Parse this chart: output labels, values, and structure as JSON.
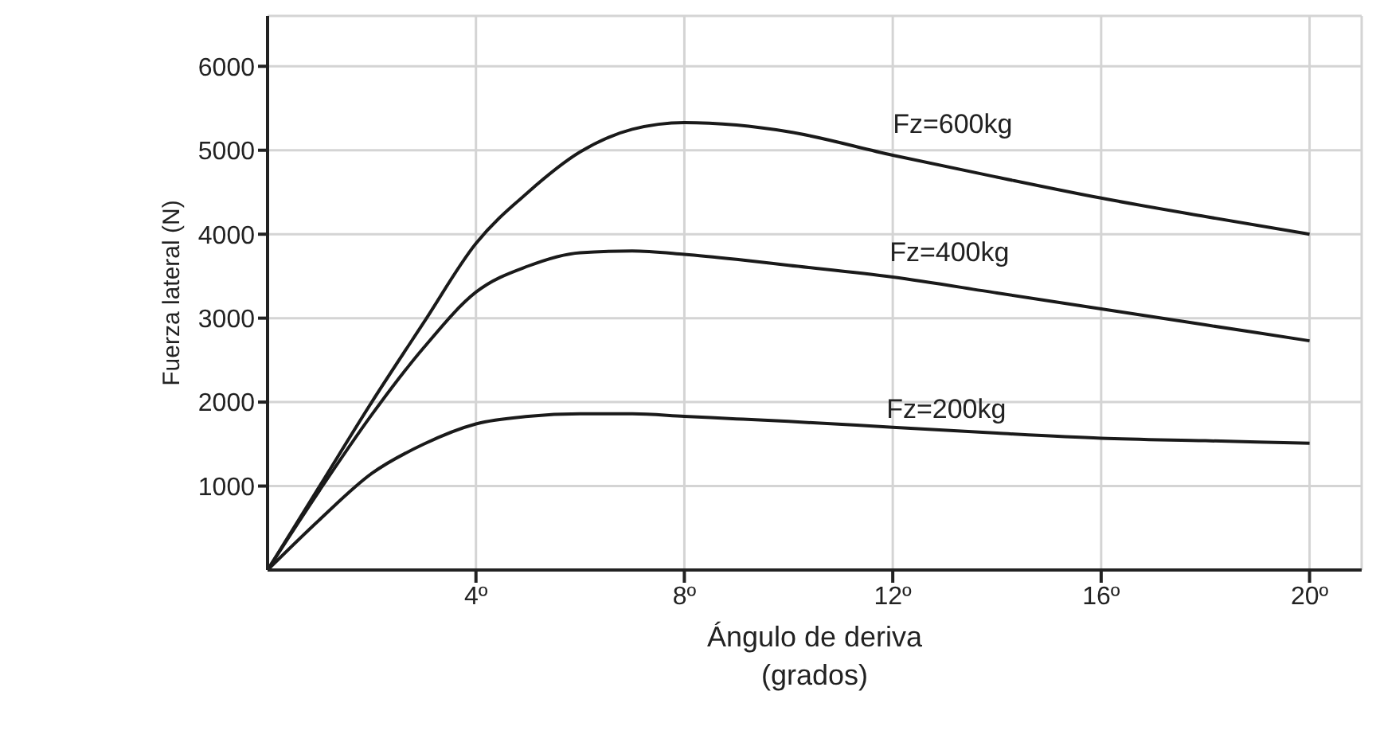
{
  "chart_data": {
    "type": "line",
    "xlabel": "Ángulo de deriva\n(grados)",
    "ylabel": "Fuerza lateral (N)",
    "x": [
      0,
      1,
      2,
      3,
      4,
      5,
      6,
      7,
      8,
      9,
      10,
      12,
      14,
      16,
      18,
      20
    ],
    "series": [
      {
        "name": "Fz=600kg",
        "color": "#1a1a1a",
        "values": [
          0,
          1000,
          2000,
          2950,
          3890,
          4500,
          4980,
          5250,
          5330,
          5300,
          5220,
          4940,
          4680,
          4430,
          4210,
          4000
        ]
      },
      {
        "name": "Fz=400kg",
        "color": "#1a1a1a",
        "values": [
          0,
          950,
          1850,
          2650,
          3310,
          3620,
          3780,
          3800,
          3760,
          3700,
          3630,
          3490,
          3300,
          3110,
          2920,
          2730
        ]
      },
      {
        "name": "Fz=200kg",
        "color": "#1a1a1a",
        "values": [
          0,
          600,
          1150,
          1500,
          1740,
          1830,
          1860,
          1860,
          1830,
          1800,
          1770,
          1700,
          1630,
          1570,
          1540,
          1510
        ]
      }
    ],
    "xlim": [
      0,
      21
    ],
    "xticks": [
      {
        "value": 4,
        "label": "4º"
      },
      {
        "value": 8,
        "label": "8º"
      },
      {
        "value": 12,
        "label": "12º"
      },
      {
        "value": 16,
        "label": "16º"
      },
      {
        "value": 20,
        "label": "20º"
      }
    ],
    "ylim": [
      0,
      6600
    ],
    "yticks": [
      1000,
      2000,
      3000,
      4000,
      5000,
      6000
    ],
    "grid": true,
    "marker": "none",
    "line_style": "solid",
    "legend": false
  }
}
